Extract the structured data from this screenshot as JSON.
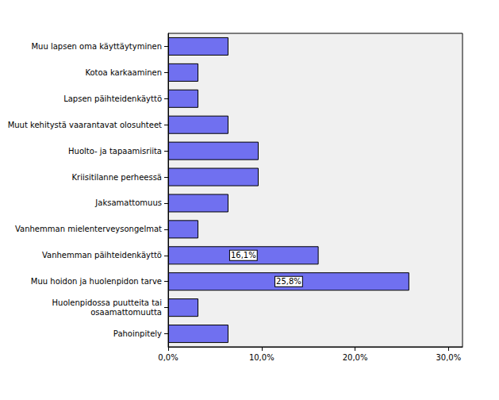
{
  "chart_data": {
    "type": "bar",
    "orientation": "horizontal",
    "categories": [
      "Muu lapsen oma käyttäytyminen",
      "Kotoa karkaaminen",
      "Lapsen päihteidenkäyttö",
      "Muut kehitystä vaarantavat olosuhteet",
      "Huolto- ja tapaamisriita",
      "Kriisitilanne perheessä",
      "Jaksamattomuus",
      "Vanhemman mielenterveysongelmat",
      "Vanhemman päihteidenkäyttö",
      "Muu hoidon ja huolenpidon tarve",
      "Huolenpidossa puutteita tai\nosaamattomuutta",
      "Pahoinpitely"
    ],
    "values": [
      6.45,
      3.23,
      3.23,
      6.45,
      9.68,
      9.68,
      6.45,
      3.23,
      16.1,
      25.8,
      3.23,
      6.45
    ],
    "value_labels": [
      null,
      null,
      null,
      null,
      null,
      null,
      null,
      null,
      "16,1%",
      "25,8%",
      null,
      null
    ],
    "data_labels": true,
    "color": "#7070f0",
    "xlim": [
      0,
      31.5
    ],
    "xticks": [
      {
        "value": 0,
        "label": "0,0%"
      },
      {
        "value": 10,
        "label": "10,0%"
      },
      {
        "value": 20,
        "label": "20,0%"
      },
      {
        "value": 30,
        "label": "30,0%"
      }
    ],
    "grid": false
  }
}
